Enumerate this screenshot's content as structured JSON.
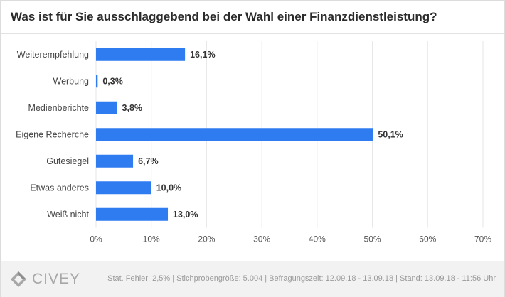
{
  "header": {
    "title": "Was ist für Sie ausschlaggebend bei der Wahl einer Finanzdienstleistung?"
  },
  "footer": {
    "brand": "CIVEY",
    "note": "Stat. Fehler: 2,5% | Stichprobengröße: 5.004 | Befragungszeit: 12.09.18 - 13.09.18 | Stand: 13.09.18 - 11:56 Uhr"
  },
  "colors": {
    "bar": "#2f7bf0",
    "grid": "#e6e6e6",
    "text": "#333333",
    "footer_bg": "#f2f2f2",
    "logo": "#a7a7a7"
  },
  "chart_data": {
    "type": "bar",
    "orientation": "horizontal",
    "categories": [
      "Weiterempfehlung",
      "Werbung",
      "Medienberichte",
      "Eigene Recherche",
      "Gütesiegel",
      "Etwas anderes",
      "Weiß nicht"
    ],
    "values": [
      16.1,
      0.3,
      3.8,
      50.1,
      6.7,
      10.0,
      13.0
    ],
    "value_labels": [
      "16,1%",
      "0,3%",
      "3,8%",
      "50,1%",
      "6,7%",
      "10,0%",
      "13,0%"
    ],
    "xlim": [
      0,
      70
    ],
    "xticks": [
      0,
      10,
      20,
      30,
      40,
      50,
      60,
      70
    ],
    "xtick_labels": [
      "0%",
      "10%",
      "20%",
      "30%",
      "40%",
      "50%",
      "60%",
      "70%"
    ],
    "grid": true,
    "legend": false
  }
}
